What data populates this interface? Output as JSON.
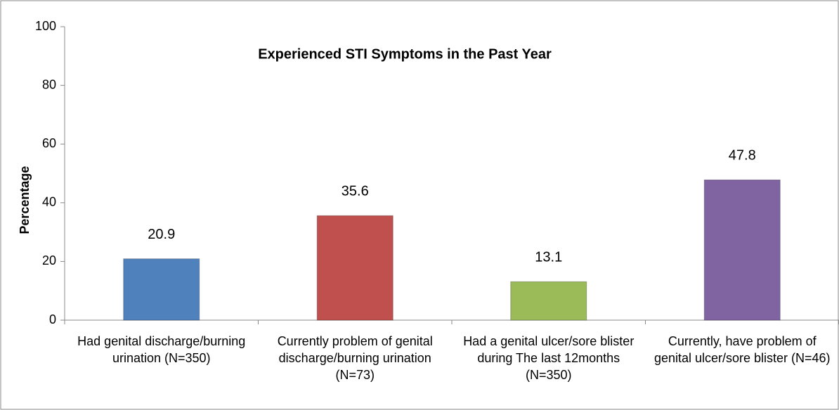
{
  "chart_data": {
    "type": "bar",
    "title": "Experienced STI Symptoms in the Past Year",
    "y_label": "Percentage",
    "categories": [
      "Had genital discharge/burning urination (N=350)",
      "Currently problem of genital discharge/burning urination (N=73)",
      "Had a genital ulcer/sore blister during The last 12months (N=350)",
      "Currently, have problem of genital ulcer/sore blister (N=46)"
    ],
    "values": [
      20.9,
      35.6,
      13.1,
      47.8
    ],
    "colors": [
      "#4f81bd",
      "#c0504d",
      "#9bbb59",
      "#8064a2"
    ],
    "ylim": [
      0,
      100
    ],
    "yticks": [
      0,
      20,
      40,
      60,
      80,
      100
    ],
    "grid": false
  }
}
